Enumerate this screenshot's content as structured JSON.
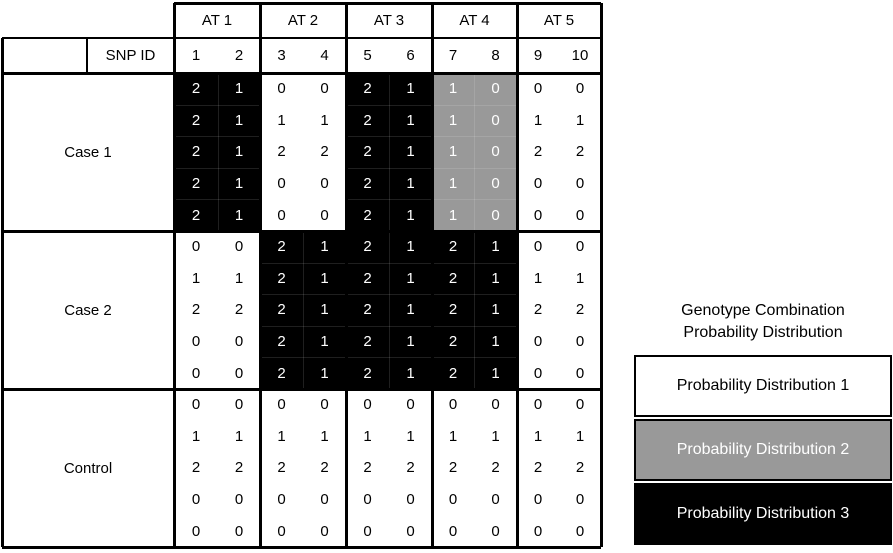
{
  "header": {
    "groups": [
      "AT 1",
      "AT 2",
      "AT 3",
      "AT 4",
      "AT 5"
    ],
    "snp_label": "SNP ID",
    "snp_ids": [
      "1",
      "2",
      "3",
      "4",
      "5",
      "6",
      "7",
      "8",
      "9",
      "10"
    ]
  },
  "row_groups": [
    {
      "label": "Case 1",
      "rows": [
        [
          "2",
          "1",
          "0",
          "0",
          "2",
          "1",
          "1",
          "0",
          "0",
          "0"
        ],
        [
          "2",
          "1",
          "1",
          "1",
          "2",
          "1",
          "1",
          "0",
          "1",
          "1"
        ],
        [
          "2",
          "1",
          "2",
          "2",
          "2",
          "1",
          "1",
          "0",
          "2",
          "2"
        ],
        [
          "2",
          "1",
          "0",
          "0",
          "2",
          "1",
          "1",
          "0",
          "0",
          "0"
        ],
        [
          "2",
          "1",
          "0",
          "0",
          "2",
          "1",
          "1",
          "0",
          "0",
          "0"
        ]
      ],
      "column_styles": [
        "dist3",
        "dist1",
        "dist3",
        "dist2",
        "dist1"
      ]
    },
    {
      "label": "Case 2",
      "rows": [
        [
          "0",
          "0",
          "2",
          "1",
          "2",
          "1",
          "2",
          "1",
          "0",
          "0"
        ],
        [
          "1",
          "1",
          "2",
          "1",
          "2",
          "1",
          "2",
          "1",
          "1",
          "1"
        ],
        [
          "2",
          "2",
          "2",
          "1",
          "2",
          "1",
          "2",
          "1",
          "2",
          "2"
        ],
        [
          "0",
          "0",
          "2",
          "1",
          "2",
          "1",
          "2",
          "1",
          "0",
          "0"
        ],
        [
          "0",
          "0",
          "2",
          "1",
          "2",
          "1",
          "2",
          "1",
          "0",
          "0"
        ]
      ],
      "column_styles": [
        "dist1",
        "dist3",
        "dist3",
        "dist3",
        "dist1"
      ]
    },
    {
      "label": "Control",
      "rows": [
        [
          "0",
          "0",
          "0",
          "0",
          "0",
          "0",
          "0",
          "0",
          "0",
          "0"
        ],
        [
          "1",
          "1",
          "1",
          "1",
          "1",
          "1",
          "1",
          "1",
          "1",
          "1"
        ],
        [
          "2",
          "2",
          "2",
          "2",
          "2",
          "2",
          "2",
          "2",
          "2",
          "2"
        ],
        [
          "0",
          "0",
          "0",
          "0",
          "0",
          "0",
          "0",
          "0",
          "0",
          "0"
        ],
        [
          "0",
          "0",
          "0",
          "0",
          "0",
          "0",
          "0",
          "0",
          "0",
          "0"
        ]
      ],
      "column_styles": [
        "dist1",
        "dist1",
        "dist1",
        "dist1",
        "dist1"
      ]
    }
  ],
  "legend": {
    "title_line1": "Genotype Combination",
    "title_line2": "Probability Distribution",
    "items": [
      {
        "label": "Probability Distribution 1",
        "style": "dist1"
      },
      {
        "label": "Probability Distribution 2",
        "style": "dist2"
      },
      {
        "label": "Probability Distribution 3",
        "style": "dist3"
      }
    ]
  },
  "colors": {
    "dist1": {
      "bg": "#ffffff",
      "fg": "#000000"
    },
    "dist2": {
      "bg": "#999999",
      "fg": "#ffffff"
    },
    "dist3": {
      "bg": "#000000",
      "fg": "#ffffff"
    }
  }
}
